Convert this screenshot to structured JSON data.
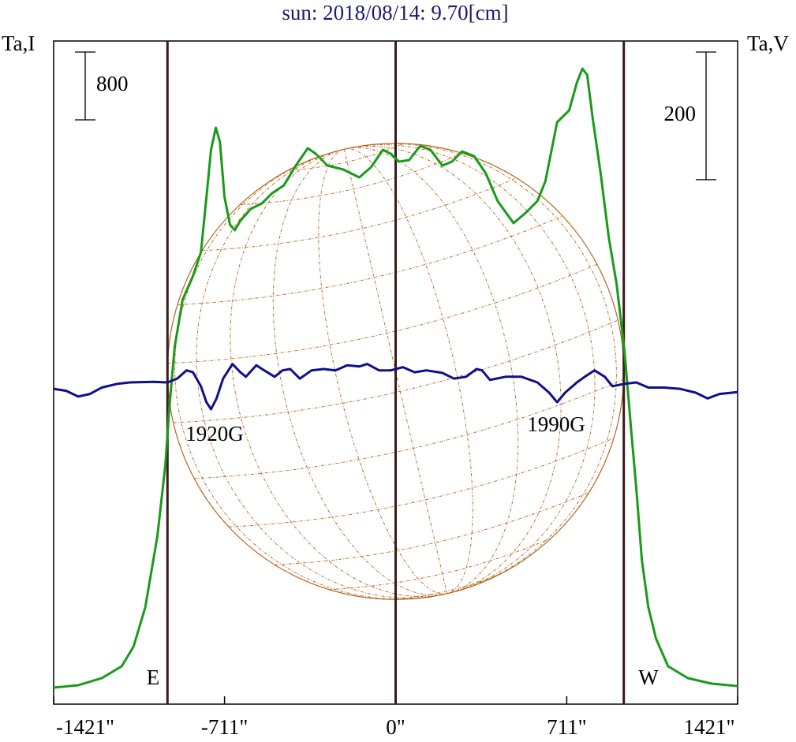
{
  "chart_data": {
    "type": "line",
    "title": "sun: 2018/08/14: 9.70[cm]",
    "ylabel": "Ta,I",
    "y2label": "Ta,V",
    "xlim": [
      -1421,
      1421
    ],
    "xticks": [
      {
        "value": -1421,
        "label": "-1421\""
      },
      {
        "value": -711,
        "label": "-711\""
      },
      {
        "value": 0,
        "label": "0\""
      },
      {
        "value": 711,
        "label": "711\""
      },
      {
        "value": 1421,
        "label": "1421\""
      }
    ],
    "ylim": [
      0,
      7823
    ],
    "y2lim": [
      -498,
      541
    ],
    "scale_bars": [
      {
        "value": 800,
        "axis": "y"
      },
      {
        "value": 200,
        "axis": "y2"
      }
    ],
    "limb_lines": [
      -948,
      0,
      948
    ],
    "annotations": [
      "E",
      "W",
      "1920G",
      "1990G"
    ],
    "series": [
      {
        "name": "Ta,I",
        "color": "#1a9a1a",
        "x": [
          -1421,
          -1319,
          -1221,
          -1138,
          -1089,
          -1040,
          -990,
          -957,
          -941,
          -918,
          -885,
          -842,
          -809,
          -786,
          -767,
          -747,
          -730,
          -711,
          -688,
          -668,
          -645,
          -602,
          -556,
          -513,
          -464,
          -415,
          -365,
          -332,
          -283,
          -217,
          -151,
          -102,
          -53,
          -20,
          13,
          56,
          102,
          145,
          194,
          234,
          276,
          326,
          375,
          424,
          490,
          540,
          589,
          622,
          671,
          721,
          753,
          776,
          796,
          819,
          852,
          885,
          918,
          951,
          977,
          1000,
          1023,
          1050,
          1082,
          1132,
          1214,
          1313,
          1421
        ],
        "values": [
          195,
          223,
          307,
          447,
          679,
          1144,
          1981,
          2819,
          3470,
          4214,
          4772,
          5051,
          5330,
          5981,
          6539,
          6800,
          6632,
          5981,
          5656,
          5591,
          5702,
          5842,
          5907,
          6028,
          6121,
          6353,
          6558,
          6493,
          6353,
          6307,
          6214,
          6335,
          6539,
          6493,
          6400,
          6418,
          6586,
          6539,
          6353,
          6400,
          6521,
          6465,
          6260,
          5935,
          5674,
          5795,
          5935,
          6167,
          6865,
          7005,
          7330,
          7497,
          7423,
          6911,
          6260,
          5516,
          4958,
          4167,
          3284,
          2539,
          1702,
          1144,
          772,
          447,
          307,
          242,
          214
        ]
      },
      {
        "name": "Ta,V",
        "color": "#10108a",
        "axis": "y2",
        "x": [
          -1421,
          -1369,
          -1319,
          -1270,
          -1221,
          -1155,
          -1105,
          -1007,
          -948,
          -908,
          -869,
          -842,
          -809,
          -786,
          -767,
          -744,
          -717,
          -678,
          -645,
          -622,
          -579,
          -546,
          -503,
          -470,
          -438,
          -398,
          -349,
          -299,
          -250,
          -201,
          -151,
          -118,
          -69,
          -20,
          30,
          79,
          128,
          194,
          243,
          293,
          336,
          359,
          392,
          457,
          523,
          589,
          638,
          671,
          704,
          753,
          786,
          826,
          869,
          901,
          951,
          1000,
          1050,
          1115,
          1181,
          1247,
          1296,
          1346,
          1421
        ],
        "values": [
          -4,
          -7,
          -16,
          -12,
          -2,
          4,
          6,
          7,
          6,
          12,
          25,
          22,
          0,
          -25,
          -36,
          -19,
          12,
          35,
          22,
          15,
          33,
          25,
          15,
          25,
          27,
          12,
          25,
          27,
          25,
          33,
          31,
          35,
          25,
          25,
          30,
          22,
          25,
          21,
          12,
          15,
          27,
          25,
          10,
          15,
          15,
          6,
          -10,
          -25,
          -10,
          6,
          15,
          25,
          15,
          0,
          4,
          6,
          -2,
          -2,
          -4,
          -10,
          -19,
          -12,
          -9
        ]
      }
    ]
  }
}
